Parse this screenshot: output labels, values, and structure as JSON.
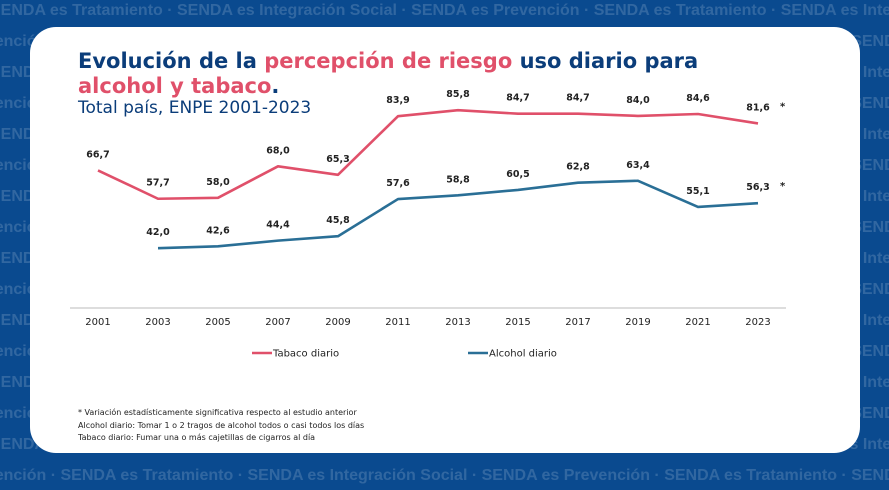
{
  "background_text": {
    "rows": [
      "SENDA es Tratamiento · SENDA es Integración Social · SENDA es Prevención · SENDA es Tratamiento · SENDA es Integración Social · SENDA es Prevención",
      "Prevención · SENDA es Tratamiento · SENDA es Integración Social · SENDA es Prevención · SENDA es Tratamiento · SENDA es Integración Social"
    ]
  },
  "title": {
    "part1": "Evolución de la ",
    "accent1": "percepción de riesgo",
    "part2": " uso diario para ",
    "accent2": "alcohol y tabaco",
    "part3": "."
  },
  "subtitle": "Total país, ENPE 2001-2023",
  "colors": {
    "background": "#0a4a8f",
    "title": "#0b3d7a",
    "accent": "#e0506a",
    "tabaco": "#e0506a",
    "alcohol": "#2a6f96"
  },
  "chart_data": {
    "type": "line",
    "x": [
      "2001",
      "2003",
      "2005",
      "2007",
      "2009",
      "2011",
      "2013",
      "2015",
      "2017",
      "2019",
      "2021",
      "2023"
    ],
    "ylim": [
      0,
      100
    ],
    "grid": false,
    "legend_position": "bottom",
    "series": [
      {
        "name": "Tabaco diario",
        "values": [
          66.7,
          57.7,
          58.0,
          68.0,
          65.3,
          83.9,
          85.8,
          84.7,
          84.7,
          84.0,
          84.6,
          81.6
        ],
        "labels": [
          "66,7",
          "57,7",
          "58,0",
          "68,0",
          "65,3",
          "83,9",
          "85,8",
          "84,7",
          "84,7",
          "84,0",
          "84,6",
          "81,6"
        ],
        "significant_marker_on": "2023"
      },
      {
        "name": "Alcohol diario",
        "values": [
          null,
          42.0,
          42.6,
          44.4,
          45.8,
          57.6,
          58.8,
          60.5,
          62.8,
          63.4,
          55.1,
          56.3
        ],
        "labels": [
          "",
          "42,0",
          "42,6",
          "44,4",
          "45,8",
          "57,6",
          "58,8",
          "60,5",
          "62,8",
          "63,4",
          "55,1",
          "56,3"
        ],
        "significant_marker_on": "2023"
      }
    ],
    "significance_marker": "*"
  },
  "notes": [
    "* Variación estadísticamente significativa respecto al estudio anterior",
    "Alcohol diario: Tomar 1 o 2 tragos de alcohol todos o casi todos los días",
    "Tabaco diario: Fumar una o más cajetillas de cigarros al día"
  ]
}
